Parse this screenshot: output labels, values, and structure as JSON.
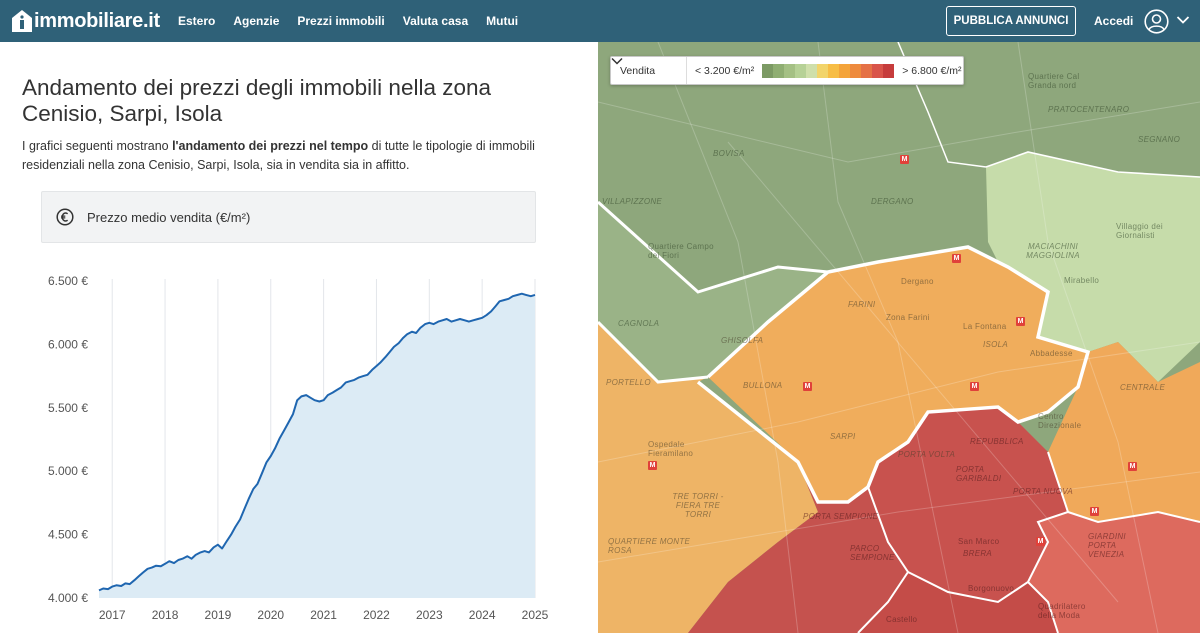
{
  "header": {
    "logo_text": "immobiliare.it",
    "nav": [
      "Estero",
      "Agenzie",
      "Prezzi immobili",
      "Valuta casa",
      "Mutui"
    ],
    "publish_label": "PUBBLICA ANNUNCI",
    "login_label": "Accedi",
    "bg_color": "#2f6178"
  },
  "main": {
    "title": "Andamento dei prezzi degli immobili nella zona Cenisio, Sarpi, Isola",
    "intro_before": "I grafici seguenti mostrano ",
    "intro_bold": "l'andamento dei prezzi nel tempo",
    "intro_after": " di tutte le tipologie di immobili residenziali nella zona Cenisio, Sarpi, Isola, sia in vendita sia in affitto.",
    "card_title": "Prezzo medio vendita (€/m²)"
  },
  "chart_data": {
    "type": "area",
    "title": "Prezzo medio vendita (€/m²)",
    "xlabel": "",
    "ylabel": "",
    "x_ticks": [
      "2017",
      "2018",
      "2019",
      "2020",
      "2021",
      "2022",
      "2023",
      "2024",
      "2025"
    ],
    "y_ticks": [
      "4.000 €",
      "4.500 €",
      "5.000 €",
      "5.500 €",
      "6.000 €",
      "6.500 €"
    ],
    "ylim": [
      4000,
      6500
    ],
    "xlim": [
      2016.75,
      2025.0
    ],
    "grid": "vertical",
    "line_color": "#1f66b0",
    "fill_color": "#dcebf5",
    "series": [
      {
        "x": [
          2016.75,
          2016.83,
          2016.92,
          2017.0,
          2017.08,
          2017.17,
          2017.25,
          2017.33,
          2017.42,
          2017.5,
          2017.58,
          2017.67,
          2017.75,
          2017.83,
          2017.92,
          2018.0,
          2018.08,
          2018.17,
          2018.25,
          2018.33,
          2018.42,
          2018.5,
          2018.58,
          2018.67,
          2018.75,
          2018.83,
          2018.92,
          2019.0,
          2019.08,
          2019.17,
          2019.25,
          2019.33,
          2019.42,
          2019.5,
          2019.58,
          2019.67,
          2019.75,
          2019.83,
          2019.92,
          2020.0,
          2020.08,
          2020.17,
          2020.25,
          2020.33,
          2020.42,
          2020.5,
          2020.58,
          2020.67,
          2020.75,
          2020.83,
          2020.92,
          2021.0,
          2021.08,
          2021.17,
          2021.25,
          2021.33,
          2021.42,
          2021.5,
          2021.58,
          2021.67,
          2021.75,
          2021.83,
          2021.92,
          2022.0,
          2022.08,
          2022.17,
          2022.25,
          2022.33,
          2022.42,
          2022.5,
          2022.58,
          2022.67,
          2022.75,
          2022.83,
          2022.92,
          2023.0,
          2023.08,
          2023.17,
          2023.25,
          2023.33,
          2023.42,
          2023.5,
          2023.58,
          2023.67,
          2023.75,
          2023.83,
          2023.92,
          2024.0,
          2024.08,
          2024.17,
          2024.25,
          2024.33,
          2024.42,
          2024.5,
          2024.58,
          2024.67,
          2024.75,
          2024.83,
          2024.92,
          2025.0
        ],
        "values": [
          4060,
          4075,
          4070,
          4090,
          4100,
          4095,
          4115,
          4110,
          4140,
          4170,
          4200,
          4230,
          4240,
          4255,
          4250,
          4270,
          4290,
          4275,
          4300,
          4310,
          4330,
          4310,
          4340,
          4360,
          4370,
          4360,
          4400,
          4420,
          4390,
          4450,
          4500,
          4560,
          4620,
          4700,
          4780,
          4860,
          4900,
          4980,
          5070,
          5120,
          5180,
          5260,
          5320,
          5380,
          5450,
          5560,
          5590,
          5600,
          5580,
          5560,
          5550,
          5560,
          5600,
          5620,
          5640,
          5660,
          5700,
          5710,
          5720,
          5740,
          5750,
          5760,
          5800,
          5830,
          5860,
          5900,
          5940,
          5980,
          6010,
          6050,
          6080,
          6100,
          6090,
          6130,
          6160,
          6170,
          6160,
          6180,
          6190,
          6200,
          6180,
          6190,
          6200,
          6190,
          6180,
          6190,
          6200,
          6210,
          6230,
          6260,
          6300,
          6340,
          6350,
          6360,
          6380,
          6390,
          6400,
          6390,
          6380,
          6390
        ]
      }
    ]
  },
  "map": {
    "mode_label": "Vendita",
    "legend_min": "< 3.200 €/m²",
    "legend_max": "> 6.800 €/m²",
    "legend_colors": [
      "#7c9a64",
      "#8fae72",
      "#a4c084",
      "#b6d196",
      "#cfdfaa",
      "#f2d46a",
      "#f7bd45",
      "#f4a43a",
      "#ee8a3d",
      "#e57146",
      "#d9544a",
      "#c63c3c"
    ],
    "labels": [
      "Quartiere Cal Granda nord",
      "PRATOCENTENARO",
      "SEGNANO",
      "BOVISA",
      "DERGANO",
      "VILLAPIZZONE",
      "Quartiere Campo dei Fiori",
      "CAGNOLA",
      "GHISOLFA",
      "PORTELLO",
      "Ospedale Fieramilano",
      "TRE TORRI - FIERA TRE TORRI",
      "QUARTIERE MONTE ROSA",
      "BULLONA",
      "SARPI",
      "FARINI",
      "Zona Farini",
      "La Fontana",
      "ISOLA",
      "Dergano",
      "Abbadesse",
      "MACIACHINI MAGGIOLINA",
      "Villaggio dei Giornalisti",
      "Mirabello",
      "CENTRALE",
      "Centro Direzionale",
      "REPUBBLICA",
      "PORTA GARIBALDI",
      "PORTA NUOVA",
      "PORTA SEMPIONE",
      "PARCO SEMPIONE",
      "San Marco",
      "BRERA",
      "GIARDINI PORTA VENEZIA",
      "Castello",
      "Quadrilatero della Moda",
      "Borgonuovo",
      "PORTA VOLTA"
    ]
  }
}
